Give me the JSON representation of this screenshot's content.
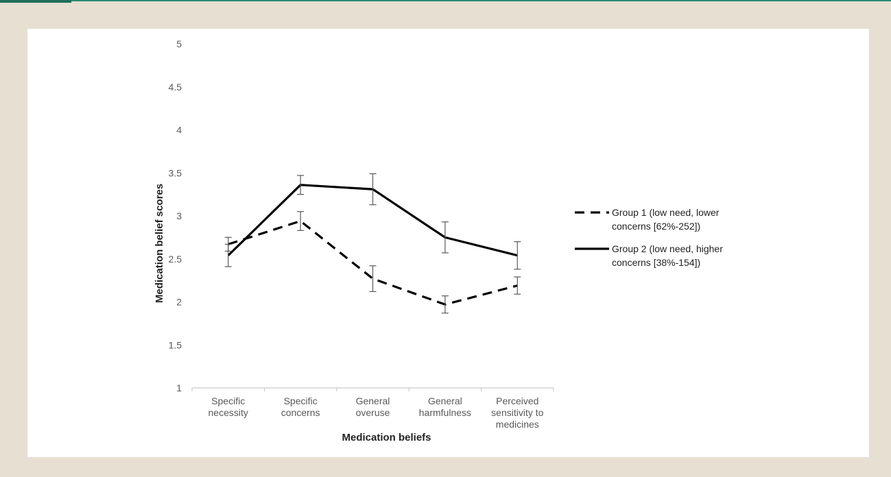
{
  "chart_data": {
    "type": "line",
    "xlabel": "Medication beliefs",
    "ylabel": "Medication belief scores",
    "ylim": [
      1,
      5
    ],
    "yticks": [
      "1",
      "1.5",
      "2",
      "2.5",
      "3",
      "3.5",
      "4",
      "4.5",
      "5"
    ],
    "grid": false,
    "legend_position": "right",
    "categories": [
      [
        "Specific",
        "necessity"
      ],
      [
        "Specific",
        "concerns"
      ],
      [
        "General",
        "overuse"
      ],
      [
        "General",
        "harmfulness"
      ],
      [
        "Perceived",
        "sensitivity to",
        "medicines"
      ]
    ],
    "series": [
      {
        "name": "Group 1 (low need, lower concerns [62%-252])",
        "legend_lines": [
          "Group 1 (low need, lower",
          "concerns [62%-252])"
        ],
        "style": "dashed",
        "color": "#000000",
        "values": [
          2.67,
          2.94,
          2.27,
          1.97,
          2.19
        ],
        "error": [
          0.08,
          0.11,
          0.15,
          0.1,
          0.1
        ]
      },
      {
        "name": "Group 2 (low need, higher concerns [38%-154])",
        "legend_lines": [
          "Group 2 (low need, higher",
          "concerns [38%-154])"
        ],
        "style": "solid",
        "color": "#000000",
        "values": [
          2.54,
          3.36,
          3.31,
          2.75,
          2.54
        ],
        "error": [
          0.13,
          0.11,
          0.18,
          0.18,
          0.16
        ]
      }
    ]
  }
}
